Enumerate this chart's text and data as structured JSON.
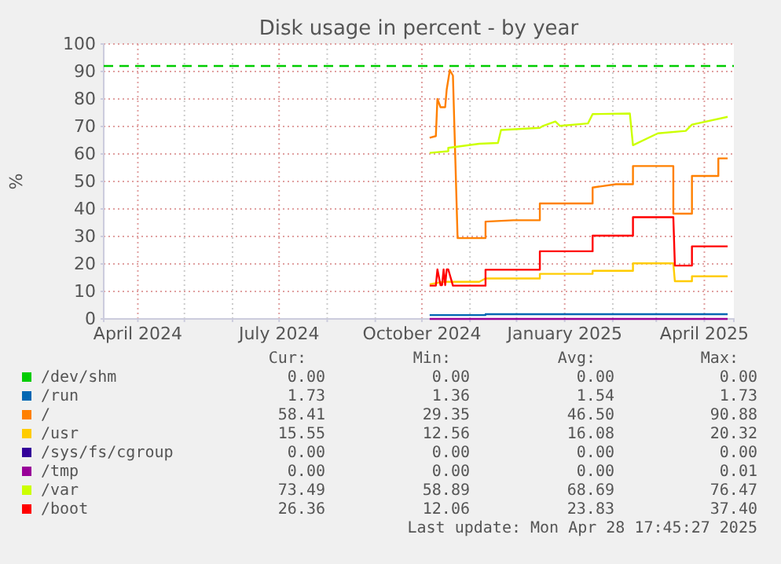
{
  "chart_data": {
    "type": "line",
    "title": "Disk usage in percent - by year",
    "ylabel": "%",
    "xlim": [
      "2024-03-10",
      "2025-04-20"
    ],
    "xticks": [
      {
        "value": "2024-04-01",
        "label": "April 2024"
      },
      {
        "value": "2024-05-01",
        "label": null
      },
      {
        "value": "2024-06-01",
        "label": null
      },
      {
        "value": "2024-07-01",
        "label": "July 2024"
      },
      {
        "value": "2024-08-01",
        "label": null
      },
      {
        "value": "2024-09-01",
        "label": null
      },
      {
        "value": "2024-10-01",
        "label": "October 2024"
      },
      {
        "value": "2024-11-01",
        "label": null
      },
      {
        "value": "2024-12-01",
        "label": null
      },
      {
        "value": "2025-01-01",
        "label": "January 2025"
      },
      {
        "value": "2025-02-01",
        "label": null
      },
      {
        "value": "2025-03-01",
        "label": null
      },
      {
        "value": "2025-04-01",
        "label": "April 2025"
      }
    ],
    "ylim": [
      0,
      100
    ],
    "yticks": [
      0,
      10,
      20,
      30,
      40,
      50,
      60,
      70,
      80,
      90,
      100
    ],
    "grid": true,
    "legend": "bottom left",
    "ref_lines": [
      {
        "axis": "y",
        "value": 92,
        "color": "#00cc00",
        "line_style": "dashed"
      }
    ],
    "series": [
      {
        "name": "/dev/shm",
        "color": "#00cc00"
      },
      {
        "name": "/run",
        "color": "#0066b3",
        "x": [
          "2024-10-06",
          "2024-11-11",
          "2024-11-11",
          "2025-04-16"
        ],
        "values": [
          1.4,
          1.4,
          1.7,
          1.7
        ]
      },
      {
        "name": "/",
        "color": "#ff8000",
        "x": [
          "2024-10-06",
          "2024-10-10",
          "2024-10-11",
          "2024-10-13",
          "2024-10-16",
          "2024-10-17",
          "2024-10-19",
          "2024-10-21",
          "2024-10-24",
          "2024-11-11",
          "2024-11-11",
          "2024-11-29",
          "2024-12-16",
          "2024-12-16",
          "2025-01-19",
          "2025-01-19",
          "2025-02-03",
          "2025-02-14",
          "2025-02-14",
          "2025-03-12",
          "2025-03-12",
          "2025-03-24",
          "2025-03-24",
          "2025-04-10",
          "2025-04-10",
          "2025-04-16"
        ],
        "values": [
          65.9,
          66.5,
          80,
          77,
          77,
          83.5,
          90.5,
          88.5,
          29.4,
          29.4,
          35.4,
          35.9,
          35.9,
          42,
          42,
          47.8,
          49,
          49,
          55.6,
          55.6,
          38.3,
          38.3,
          52,
          52,
          58.4,
          58.4
        ]
      },
      {
        "name": "/usr",
        "color": "#ffcc00",
        "x": [
          "2024-10-06",
          "2024-10-15",
          "2024-11-07",
          "2024-11-11",
          "2024-12-16",
          "2024-12-16",
          "2025-01-19",
          "2025-01-19",
          "2025-02-14",
          "2025-02-14",
          "2025-03-12",
          "2025-03-13",
          "2025-03-24",
          "2025-03-24",
          "2025-04-16"
        ],
        "values": [
          12.6,
          13.5,
          13.5,
          14.7,
          14.7,
          16.4,
          16.4,
          17.5,
          17.5,
          20.2,
          20.2,
          13.7,
          13.7,
          15.5,
          15.5
        ]
      },
      {
        "name": "/sys/fs/cgroup",
        "color": "#330099"
      },
      {
        "name": "/tmp",
        "color": "#990099",
        "x": [
          "2024-10-06",
          "2025-04-16"
        ],
        "values": [
          0,
          0
        ]
      },
      {
        "name": "/var",
        "color": "#ccff00",
        "x": [
          "2024-10-06",
          "2024-10-18",
          "2024-10-18",
          "2024-11-07",
          "2024-11-19",
          "2024-11-21",
          "2024-12-16",
          "2024-12-18",
          "2024-12-26",
          "2024-12-29",
          "2025-01-16",
          "2025-01-19",
          "2025-02-12",
          "2025-02-14",
          "2025-03-02",
          "2025-03-20",
          "2025-03-24",
          "2025-04-16"
        ],
        "values": [
          60.4,
          61,
          62.2,
          63.7,
          64,
          68.7,
          69.5,
          70.2,
          71.8,
          70.2,
          71.1,
          74.5,
          74.7,
          63.2,
          67.5,
          68.4,
          70.7,
          73.5
        ]
      },
      {
        "name": "/boot",
        "color": "#ff0000",
        "x": [
          "2024-10-06",
          "2024-10-10",
          "2024-10-11",
          "2024-10-13",
          "2024-10-14",
          "2024-10-15",
          "2024-10-16",
          "2024-10-17",
          "2024-10-18",
          "2024-10-21",
          "2024-11-11",
          "2024-11-11",
          "2024-12-16",
          "2024-12-16",
          "2025-01-19",
          "2025-01-19",
          "2025-02-14",
          "2025-02-14",
          "2025-03-12",
          "2025-03-13",
          "2025-03-24",
          "2025-03-24",
          "2025-04-16"
        ],
        "values": [
          12.1,
          12.1,
          18,
          12.3,
          12.3,
          18,
          12.3,
          18,
          18,
          12.1,
          12.1,
          17.9,
          17.9,
          24.6,
          24.6,
          30.3,
          30.3,
          37,
          37,
          19.4,
          19.4,
          26.4,
          26.4
        ]
      }
    ],
    "annotations": [
      "Cur:",
      "Min:",
      "Avg:",
      "Max:",
      "0.00",
      "0.00",
      "0.00",
      "0.00",
      "1.73",
      "1.36",
      "1.54",
      "1.73",
      "58.41",
      "29.35",
      "46.50",
      "90.88",
      "15.55",
      "12.56",
      "16.08",
      "20.32",
      "0.00",
      "0.00",
      "0.00",
      "0.00",
      "0.00",
      "0.00",
      "0.00",
      "0.01",
      "73.49",
      "58.89",
      "68.69",
      "76.47",
      "26.36",
      "12.06",
      "23.83",
      "37.40",
      "Last update: Mon Apr 28 17:45:27 2025"
    ]
  }
}
